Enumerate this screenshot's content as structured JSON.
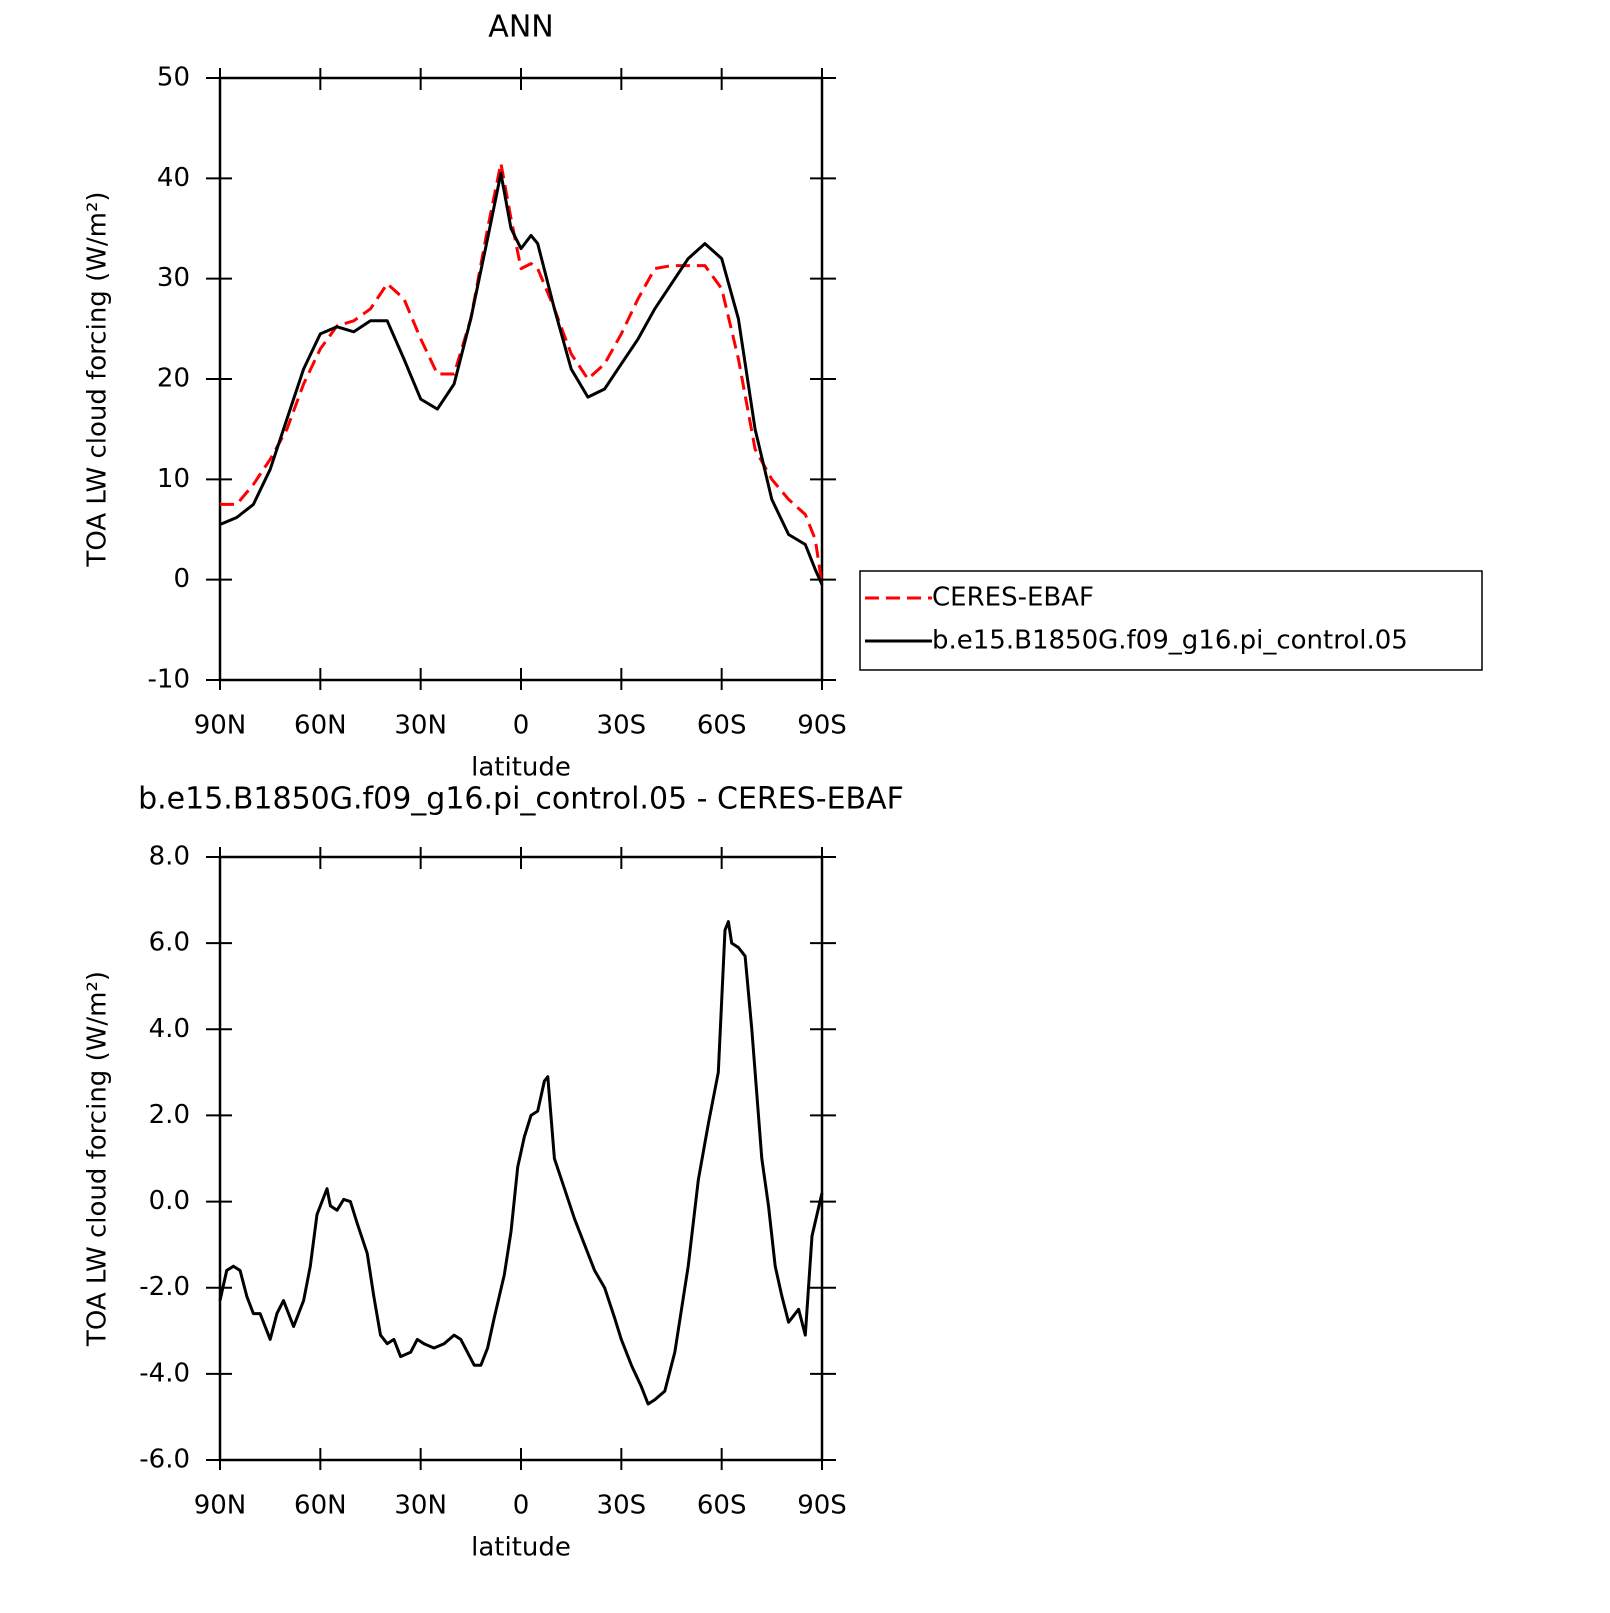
{
  "chart_data": [
    {
      "type": "line",
      "title": "ANN",
      "xlabel": "latitude",
      "ylabel": "TOA LW cloud forcing (W/m²)",
      "xlim": [
        90,
        -90
      ],
      "xticks": [
        {
          "value": 90,
          "label": "90N"
        },
        {
          "value": 60,
          "label": "60N"
        },
        {
          "value": 30,
          "label": "30N"
        },
        0,
        {
          "value": -30,
          "label": "30S"
        },
        {
          "value": -60,
          "label": "60S"
        },
        {
          "value": -90,
          "label": "90S"
        }
      ],
      "ylim": [
        -10,
        50
      ],
      "yticks": [
        -10,
        0,
        10,
        20,
        30,
        40,
        50
      ],
      "legend": "outside-right",
      "x": [
        90,
        85,
        80,
        75,
        70,
        65,
        60,
        55,
        50,
        45,
        40,
        35,
        30,
        25,
        20,
        15,
        10,
        6,
        3,
        0,
        -3,
        -5,
        -10,
        -15,
        -20,
        -25,
        -30,
        -35,
        -40,
        -45,
        -50,
        -55,
        -60,
        -65,
        -70,
        -75,
        -80,
        -85,
        -88,
        -90
      ],
      "series": [
        {
          "name": "CERES-EBAF",
          "color": "#ff0000",
          "linestyle": "dashed",
          "values": [
            7.5,
            7.5,
            9.5,
            12,
            15,
            19.5,
            23,
            25.3,
            25.8,
            27,
            29.5,
            28,
            24,
            20.5,
            20.5,
            26,
            35,
            41.5,
            36,
            31,
            31.5,
            31,
            27,
            22.5,
            20,
            21.5,
            24.5,
            28,
            31,
            31.3,
            31.3,
            31.3,
            29,
            22,
            13,
            10,
            8,
            6.5,
            4,
            -0.5
          ]
        },
        {
          "name": "b.e15.B1850G.f09_g16.pi_control.05",
          "color": "#000000",
          "linestyle": "solid",
          "values": [
            5.5,
            6.2,
            7.5,
            11,
            16,
            21,
            24.5,
            25.2,
            24.7,
            25.8,
            25.8,
            22,
            18,
            17,
            19.5,
            26,
            34,
            40.5,
            35,
            33,
            34.3,
            33.5,
            27,
            21,
            18.2,
            19,
            21.5,
            24,
            27,
            29.5,
            32,
            33.5,
            32,
            26,
            15,
            8,
            4.5,
            3.5,
            1,
            -0.5
          ]
        }
      ]
    },
    {
      "type": "line",
      "title": "b.e15.B1850G.f09_g16.pi_control.05 - CERES-EBAF",
      "xlabel": "latitude",
      "ylabel": "TOA LW cloud forcing (W/m²)",
      "xlim": [
        90,
        -90
      ],
      "xticks": [
        {
          "value": 90,
          "label": "90N"
        },
        {
          "value": 60,
          "label": "60N"
        },
        {
          "value": 30,
          "label": "30N"
        },
        0,
        {
          "value": -30,
          "label": "30S"
        },
        {
          "value": -60,
          "label": "60S"
        },
        {
          "value": -90,
          "label": "90S"
        }
      ],
      "ylim": [
        -6,
        8
      ],
      "yticks": [
        {
          "value": -6,
          "label": "-6.0"
        },
        {
          "value": -4,
          "label": "-4.0"
        },
        {
          "value": -2,
          "label": "-2.0"
        },
        {
          "value": 0,
          "label": "0.0"
        },
        {
          "value": 2,
          "label": "2.0"
        },
        {
          "value": 4,
          "label": "4.0"
        },
        {
          "value": 6,
          "label": "6.0"
        },
        {
          "value": 8,
          "label": "8.0"
        }
      ],
      "x": [
        90,
        88,
        86,
        84,
        82,
        80,
        78,
        75,
        73,
        71,
        68,
        65,
        63,
        61,
        58,
        57,
        55,
        53,
        51,
        49,
        46,
        44,
        42,
        40,
        38,
        36,
        33,
        31,
        29,
        26,
        23,
        20,
        18,
        16,
        14,
        12,
        10,
        8,
        5,
        3,
        1,
        -1,
        -3,
        -5,
        -7,
        -8,
        -10,
        -13,
        -16,
        -19,
        -22,
        -25,
        -28,
        -30,
        -33,
        -36,
        -38,
        -40,
        -43,
        -46,
        -50,
        -53,
        -56,
        -59,
        -61,
        -62,
        -63,
        -65,
        -67,
        -69,
        -72,
        -74,
        -76,
        -78,
        -80,
        -83,
        -85,
        -87,
        -90
      ],
      "series": [
        {
          "color": "#000000",
          "linestyle": "solid",
          "values": [
            -2.3,
            -1.6,
            -1.5,
            -1.6,
            -2.2,
            -2.6,
            -2.6,
            -3.2,
            -2.6,
            -2.3,
            -2.9,
            -2.3,
            -1.5,
            -0.3,
            0.3,
            -0.1,
            -0.2,
            0.05,
            0,
            -0.5,
            -1.2,
            -2.2,
            -3.1,
            -3.3,
            -3.2,
            -3.6,
            -3.5,
            -3.2,
            -3.3,
            -3.4,
            -3.3,
            -3.1,
            -3.2,
            -3.5,
            -3.8,
            -3.8,
            -3.4,
            -2.7,
            -1.7,
            -0.7,
            0.8,
            1.5,
            2.0,
            2.1,
            2.8,
            2.9,
            1.0,
            0.3,
            -0.4,
            -1.0,
            -1.6,
            -2.0,
            -2.7,
            -3.2,
            -3.8,
            -4.3,
            -4.7,
            -4.6,
            -4.4,
            -3.5,
            -1.5,
            0.5,
            1.8,
            3.0,
            6.3,
            6.5,
            6.0,
            5.9,
            5.7,
            4.0,
            1.0,
            -0.1,
            -1.5,
            -2.2,
            -2.8,
            -2.5,
            -3.1,
            -0.8,
            0.2
          ]
        }
      ]
    }
  ]
}
